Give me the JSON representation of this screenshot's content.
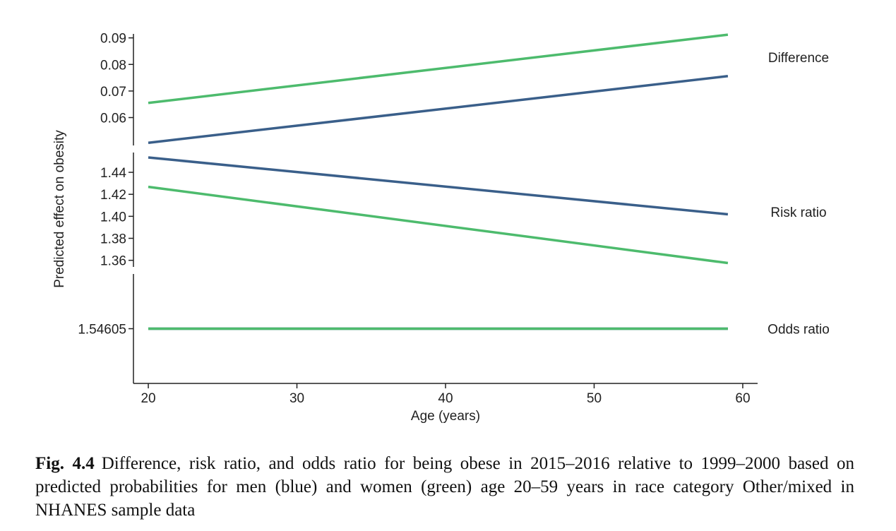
{
  "chart_data": {
    "type": "line",
    "xlabel": "Age (years)",
    "ylabel": "Predicted effect on obesity",
    "xlim": [
      19,
      61
    ],
    "x_ticks": [
      20,
      30,
      40,
      50,
      60
    ],
    "grid": false,
    "colors": {
      "men": "#3a5f8a",
      "women": "#4dbb6d"
    },
    "panels": [
      {
        "label": "Difference",
        "ylim": [
          0.0495,
          0.0915
        ],
        "y_ticks": [
          0.06,
          0.07,
          0.08,
          0.09
        ],
        "y_tick_labels": [
          "0.06",
          "0.07",
          "0.08",
          "0.09"
        ],
        "series": [
          {
            "group": "men",
            "x": [
              20,
              59
            ],
            "y": [
              0.0505,
              0.0756
            ]
          },
          {
            "group": "women",
            "x": [
              20,
              59
            ],
            "y": [
              0.0655,
              0.0912
            ]
          }
        ]
      },
      {
        "label": "Risk ratio",
        "ylim": [
          1.354,
          1.458
        ],
        "y_ticks": [
          1.36,
          1.38,
          1.4,
          1.42,
          1.44
        ],
        "y_tick_labels": [
          "1.36",
          "1.38",
          "1.40",
          "1.42",
          "1.44"
        ],
        "series": [
          {
            "group": "men",
            "x": [
              20,
              59
            ],
            "y": [
              1.4535,
              1.4018
            ]
          },
          {
            "group": "women",
            "x": [
              20,
              59
            ],
            "y": [
              1.4268,
              1.3575
            ]
          }
        ]
      },
      {
        "label": "Odds ratio",
        "ylim": [
          1.546,
          1.5461
        ],
        "y_ticks": [
          1.54605
        ],
        "y_tick_labels": [
          "1.54605"
        ],
        "series": [
          {
            "group": "men",
            "x": [
              20,
              59
            ],
            "y": [
              1.54605,
              1.54605
            ]
          },
          {
            "group": "women",
            "x": [
              20,
              59
            ],
            "y": [
              1.54605,
              1.54605
            ]
          }
        ]
      }
    ]
  },
  "caption": {
    "label": "Fig. 4.4",
    "text": "Difference, risk ratio, and odds ratio for being obese in 2015–2016 relative to 1999–2000 based on predicted probabilities for men (blue) and women (green) age 20–59 years in race category Other/mixed in NHANES sample data"
  }
}
